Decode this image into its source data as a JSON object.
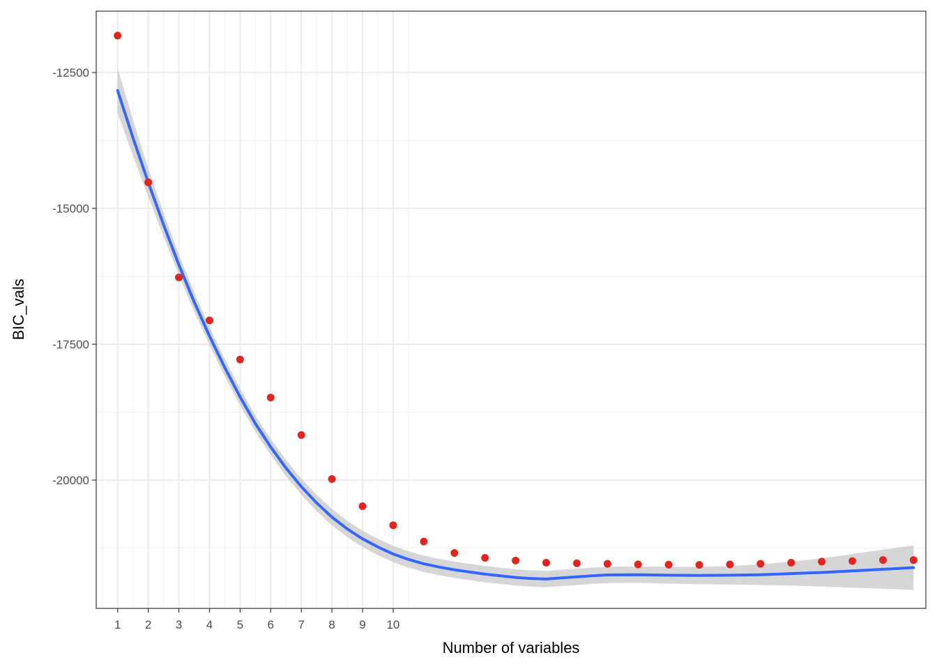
{
  "chart_data": {
    "type": "scatter",
    "title": "",
    "xlabel": "Number of variables",
    "ylabel": "BIC_vals",
    "xlim": [
      0.3,
      27.4
    ],
    "ylim": [
      -22360,
      -11370
    ],
    "x_ticks": [
      1,
      2,
      3,
      4,
      5,
      6,
      7,
      8,
      9,
      10
    ],
    "y_ticks": [
      -12500,
      -15000,
      -17500,
      -20000
    ],
    "y_tick_labels": [
      "-12500",
      "-15000",
      "-17500",
      "-20000"
    ],
    "x_tick_labels": [
      "1",
      "2",
      "3",
      "4",
      "5",
      "6",
      "7",
      "8",
      "9",
      "10"
    ],
    "grid": true,
    "point_color": "#e0261f",
    "smooth_color": "#3366ff",
    "band_color": "#c8c8c8",
    "points": {
      "x": [
        1,
        2,
        3,
        4,
        5,
        6,
        7,
        8,
        9,
        10,
        11,
        12,
        13,
        14,
        15,
        16,
        17,
        18,
        19,
        20,
        21,
        22,
        23,
        24,
        25,
        26,
        27
      ],
      "y": [
        -11820,
        -14520,
        -16270,
        -17060,
        -17780,
        -18480,
        -19170,
        -19980,
        -20480,
        -20830,
        -21130,
        -21340,
        -21430,
        -21480,
        -21520,
        -21530,
        -21540,
        -21550,
        -21555,
        -21560,
        -21550,
        -21540,
        -21520,
        -21500,
        -21490,
        -21470,
        -21470
      ]
    },
    "smooth": {
      "x": [
        1,
        1.5,
        2,
        2.5,
        3,
        3.5,
        4,
        4.5,
        5,
        5.5,
        6,
        6.5,
        7,
        7.5,
        8,
        8.5,
        9,
        9.5,
        10,
        10.5,
        11,
        11.5,
        12,
        12.5,
        13,
        13.5,
        14,
        14.5,
        15,
        15.5,
        16,
        16.5,
        17,
        18,
        19,
        20,
        21,
        22,
        23,
        24,
        25,
        26,
        27
      ],
      "y": [
        -12830,
        -13700,
        -14520,
        -15300,
        -16040,
        -16720,
        -17350,
        -17930,
        -18470,
        -18960,
        -19390,
        -19780,
        -20120,
        -20420,
        -20680,
        -20900,
        -21080,
        -21230,
        -21360,
        -21460,
        -21540,
        -21600,
        -21650,
        -21690,
        -21730,
        -21760,
        -21790,
        -21810,
        -21820,
        -21800,
        -21780,
        -21760,
        -21745,
        -21740,
        -21750,
        -21755,
        -21750,
        -21740,
        -21720,
        -21700,
        -21670,
        -21640,
        -21610
      ],
      "band_halfwidth": [
        420,
        330,
        260,
        220,
        190,
        175,
        165,
        160,
        155,
        150,
        150,
        150,
        150,
        150,
        150,
        150,
        150,
        150,
        150,
        150,
        150,
        150,
        150,
        150,
        150,
        150,
        150,
        150,
        150,
        150,
        150,
        150,
        150,
        150,
        155,
        160,
        170,
        190,
        220,
        260,
        310,
        360,
        410
      ]
    }
  }
}
